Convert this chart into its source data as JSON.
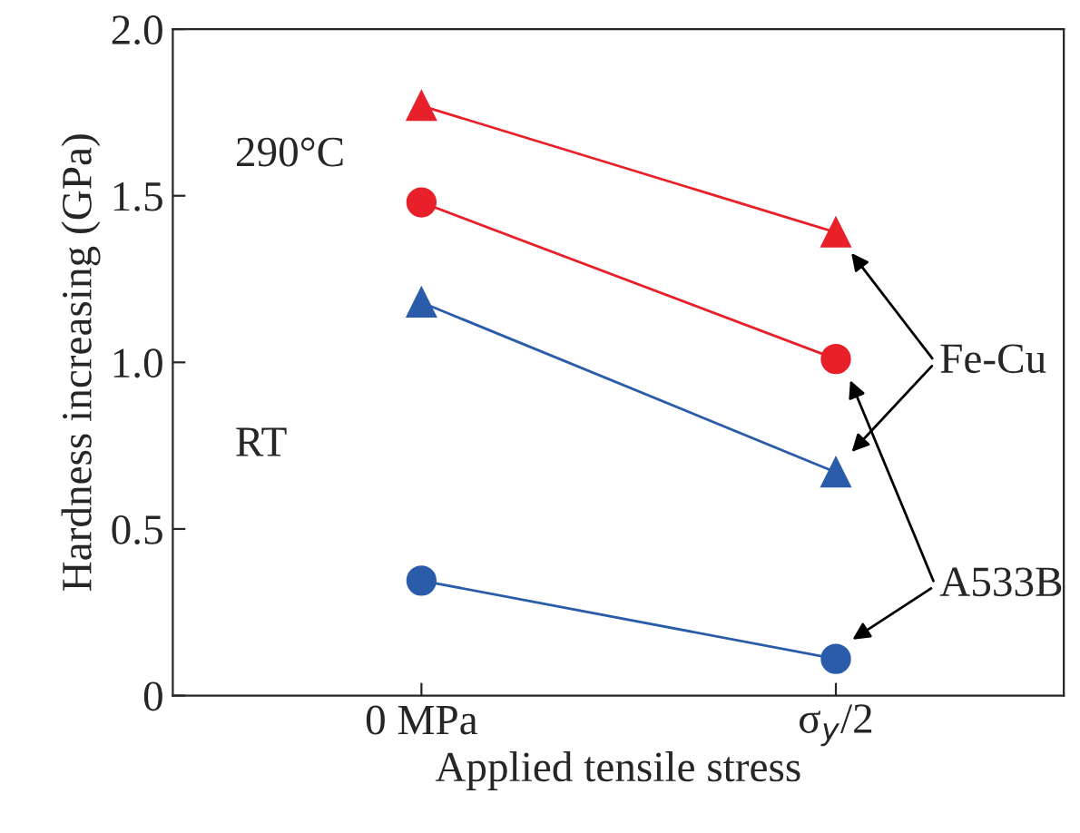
{
  "chart_data": {
    "type": "line",
    "xlabel": "Applied tensile stress",
    "ylabel": "Hardness increasing (GPa)",
    "categories": [
      "0 MPa",
      "σ$_{y}$/2"
    ],
    "series": [
      {
        "color": "#e8202a",
        "values": [
          1.77,
          1.39
        ],
        "marker": "triangle"
      },
      {
        "color": "#e8202a",
        "values": [
          1.48,
          1.01
        ],
        "marker": "circle"
      },
      {
        "color": "#2a5caa",
        "values": [
          1.18,
          0.67
        ],
        "marker": "triangle"
      },
      {
        "color": "#2a5caa",
        "values": [
          0.345,
          0.11
        ],
        "marker": "circle"
      }
    ],
    "ylim": [
      0,
      2.0
    ],
    "yticks": [
      {
        "value": 0,
        "label": "0"
      },
      {
        "value": 0.5,
        "label": "0.5"
      },
      {
        "value": 1.0,
        "label": "1.0"
      },
      {
        "value": 1.5,
        "label": "1.5"
      },
      {
        "value": 2.0,
        "label": "2.0"
      }
    ],
    "grid": false,
    "legend": false,
    "annotations": [
      "290°C",
      "RT",
      "Fe-Cu",
      "A533B"
    ]
  }
}
